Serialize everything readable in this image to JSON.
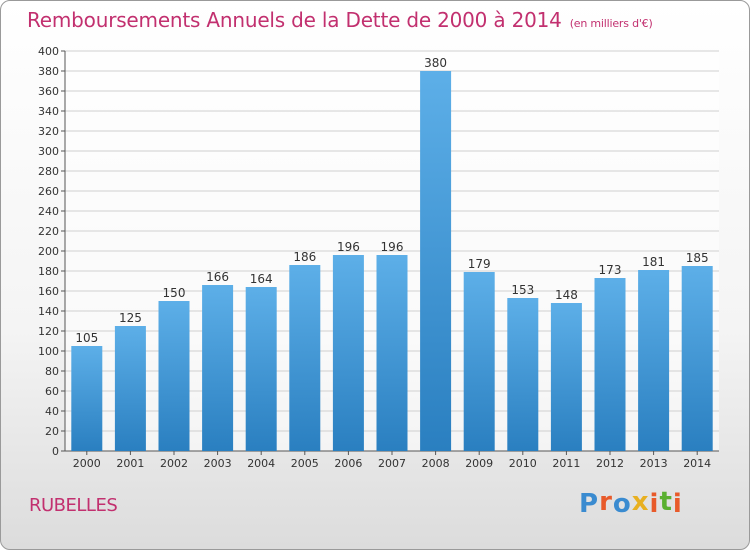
{
  "header": {
    "title": "Remboursements Annuels de la Dette de 2000 à 2014",
    "unit": "(en milliers d'€)"
  },
  "footer": {
    "town": "RUBELLES",
    "logo_text": "Proxiti"
  },
  "colors": {
    "title": "#c2306f",
    "bar_light": "#5dafe8",
    "bar_dark": "#2a7fc0",
    "grid": "#d0d0d0",
    "logo": [
      "#3a8bd0",
      "#e85a2a",
      "#3a8bd0",
      "#e8b020",
      "#e85a2a",
      "#5ab030",
      "#e85a2a"
    ]
  },
  "chart_data": {
    "type": "bar",
    "title": "Remboursements Annuels de la Dette de 2000 à 2014",
    "categories": [
      "2000",
      "2001",
      "2002",
      "2003",
      "2004",
      "2005",
      "2006",
      "2007",
      "2008",
      "2009",
      "2010",
      "2011",
      "2012",
      "2013",
      "2014"
    ],
    "values": [
      105,
      125,
      150,
      166,
      164,
      186,
      196,
      196,
      380,
      179,
      153,
      148,
      173,
      181,
      185
    ],
    "data_labels": [
      "105",
      "125",
      "150",
      "166",
      "164",
      "186",
      "196",
      "196",
      "380",
      "179",
      "153",
      "148",
      "173",
      "181",
      "185"
    ],
    "ylim": [
      0,
      400
    ],
    "yticks": [
      0,
      20,
      40,
      60,
      80,
      100,
      120,
      140,
      160,
      180,
      200,
      220,
      240,
      260,
      280,
      300,
      320,
      340,
      360,
      380,
      400
    ],
    "ytick_labels": [
      "0",
      "20",
      "40",
      "60",
      "80",
      "100",
      "120",
      "140",
      "160",
      "180",
      "200",
      "220",
      "240",
      "260",
      "280",
      "300",
      "320",
      "340",
      "360",
      "380",
      "400"
    ],
    "grid": true,
    "legend": "none"
  }
}
